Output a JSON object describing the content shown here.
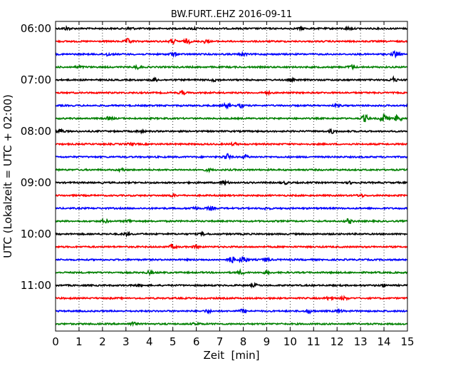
{
  "chart_data": {
    "type": "line",
    "title": "BW.FURT..EHZ 2016-09-11",
    "xlabel": "Zeit  [min]",
    "ylabel": "UTC (Lokalzeit = UTC + 02:00)",
    "xlim": [
      0,
      15
    ],
    "x_ticks": [
      "0",
      "1",
      "2",
      "3",
      "4",
      "5",
      "6",
      "7",
      "8",
      "9",
      "10",
      "11",
      "12",
      "13",
      "14",
      "15"
    ],
    "y_ticks": [
      "06:00",
      "07:00",
      "08:00",
      "09:00",
      "10:00",
      "11:00"
    ],
    "grid": "vertical dotted",
    "colors": [
      "#000000",
      "#ff0000",
      "#0000ff",
      "#008000"
    ],
    "traces": [
      {
        "time": "06:00",
        "color": "#000000",
        "events": [
          [
            0.5,
            2.0
          ],
          [
            3.2,
            1.6
          ],
          [
            5.9,
            1.4
          ],
          [
            10.5,
            1.6
          ],
          [
            12.5,
            1.4
          ]
        ]
      },
      {
        "time": "06:15",
        "color": "#ff0000",
        "events": [
          [
            3.1,
            3.2
          ],
          [
            5.0,
            2.6
          ],
          [
            5.6,
            2.8
          ],
          [
            6.4,
            2.0
          ]
        ]
      },
      {
        "time": "06:30",
        "color": "#0000ff",
        "events": [
          [
            2.2,
            1.8
          ],
          [
            5.0,
            2.0
          ],
          [
            8.0,
            1.6
          ],
          [
            14.5,
            4.0
          ]
        ]
      },
      {
        "time": "06:45",
        "color": "#008000",
        "events": [
          [
            1.0,
            1.4
          ],
          [
            3.5,
            1.8
          ],
          [
            12.6,
            2.2
          ]
        ]
      },
      {
        "time": "07:00",
        "color": "#000000",
        "events": [
          [
            4.2,
            2.0
          ],
          [
            6.8,
            1.6
          ],
          [
            10.0,
            1.4
          ],
          [
            14.4,
            3.0
          ]
        ]
      },
      {
        "time": "07:15",
        "color": "#ff0000",
        "events": [
          [
            5.4,
            2.0
          ],
          [
            9.0,
            1.4
          ]
        ]
      },
      {
        "time": "07:30",
        "color": "#0000ff",
        "events": [
          [
            7.3,
            2.6
          ],
          [
            7.9,
            2.2
          ],
          [
            12.0,
            1.4
          ]
        ]
      },
      {
        "time": "07:45",
        "color": "#008000",
        "events": [
          [
            2.3,
            2.0
          ],
          [
            13.2,
            4.4
          ],
          [
            14.0,
            6.2
          ],
          [
            14.6,
            4.6
          ]
        ]
      },
      {
        "time": "08:00",
        "color": "#000000",
        "events": [
          [
            0.2,
            3.0
          ],
          [
            3.6,
            1.4
          ],
          [
            11.8,
            2.4
          ]
        ]
      },
      {
        "time": "08:15",
        "color": "#ff0000",
        "events": [
          [
            3.2,
            1.4
          ],
          [
            7.6,
            1.4
          ]
        ]
      },
      {
        "time": "08:30",
        "color": "#0000ff",
        "events": [
          [
            7.3,
            4.0
          ],
          [
            8.1,
            2.2
          ]
        ]
      },
      {
        "time": "08:45",
        "color": "#008000",
        "events": [
          [
            2.8,
            1.8
          ],
          [
            6.5,
            1.4
          ]
        ]
      },
      {
        "time": "09:00",
        "color": "#000000",
        "events": [
          [
            7.2,
            2.8
          ],
          [
            9.8,
            1.4
          ],
          [
            12.6,
            1.4
          ]
        ]
      },
      {
        "time": "09:15",
        "color": "#ff0000",
        "events": [
          [
            5.0,
            1.4
          ],
          [
            13.0,
            1.6
          ]
        ]
      },
      {
        "time": "09:30",
        "color": "#0000ff",
        "events": [
          [
            5.9,
            2.0
          ],
          [
            6.6,
            2.2
          ],
          [
            9.0,
            1.4
          ]
        ]
      },
      {
        "time": "09:45",
        "color": "#008000",
        "events": [
          [
            2.1,
            2.2
          ],
          [
            3.1,
            1.6
          ],
          [
            12.5,
            2.8
          ]
        ]
      },
      {
        "time": "10:00",
        "color": "#000000",
        "events": [
          [
            3.0,
            1.6
          ],
          [
            6.3,
            1.4
          ]
        ]
      },
      {
        "time": "10:15",
        "color": "#ff0000",
        "events": [
          [
            5.0,
            2.6
          ],
          [
            6.0,
            2.0
          ]
        ]
      },
      {
        "time": "10:30",
        "color": "#0000ff",
        "events": [
          [
            7.5,
            4.2
          ],
          [
            8.0,
            5.0
          ],
          [
            9.0,
            2.4
          ]
        ]
      },
      {
        "time": "10:45",
        "color": "#008000",
        "events": [
          [
            4.0,
            1.6
          ],
          [
            7.9,
            2.4
          ],
          [
            9.0,
            1.4
          ]
        ]
      },
      {
        "time": "11:00",
        "color": "#000000",
        "events": [
          [
            3.5,
            1.4
          ],
          [
            8.5,
            1.4
          ],
          [
            14.0,
            1.4
          ]
        ]
      },
      {
        "time": "11:15",
        "color": "#ff0000",
        "events": [
          [
            11.7,
            2.6
          ],
          [
            12.3,
            2.0
          ]
        ]
      },
      {
        "time": "11:30",
        "color": "#0000ff",
        "events": [
          [
            6.5,
            1.6
          ],
          [
            8.0,
            2.6
          ],
          [
            10.8,
            2.2
          ],
          [
            12.1,
            1.6
          ]
        ]
      },
      {
        "time": "11:45",
        "color": "#008000",
        "events": [
          [
            3.3,
            2.0
          ],
          [
            6.0,
            1.4
          ]
        ]
      }
    ]
  }
}
